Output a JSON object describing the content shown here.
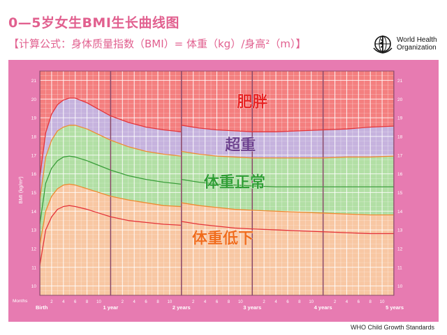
{
  "header": {
    "title": "0—5岁女生BMI生长曲线图",
    "subtitle": "【计算公式：身体质量指数（BMI）= 体重（kg）/身高²（m）】"
  },
  "logo": {
    "text": "World Health\nOrganization"
  },
  "source": "WHO Child Growth Standards",
  "colors": {
    "frame": "#e77bb1",
    "obese_zone": "#f47f7f",
    "overweight_zone": "#c6b3de",
    "normal_zone": "#b2dfa5",
    "underweight_zone": "#f8c7a3",
    "line_red": "#e4343a",
    "line_orange": "#f08a30",
    "line_green": "#3a9e3a"
  },
  "chart_data": {
    "type": "line",
    "ylabel": "BMI (kg/m²)",
    "ylim": [
      9.5,
      21.5
    ],
    "y_ticks": [
      10,
      11,
      12,
      13,
      14,
      15,
      16,
      17,
      18,
      19,
      20,
      21
    ],
    "x_axis_title": "Months",
    "xlim": [
      0,
      60
    ],
    "x_ticks": [
      {
        "month": 0,
        "label": "Birth",
        "major": true
      },
      {
        "month": 2,
        "label": "2"
      },
      {
        "month": 4,
        "label": "4"
      },
      {
        "month": 6,
        "label": "6"
      },
      {
        "month": 8,
        "label": "8"
      },
      {
        "month": 10,
        "label": "10"
      },
      {
        "month": 12,
        "label": "1 year",
        "major": true
      },
      {
        "month": 14,
        "label": "2"
      },
      {
        "month": 16,
        "label": "4"
      },
      {
        "month": 18,
        "label": "6"
      },
      {
        "month": 20,
        "label": "8"
      },
      {
        "month": 22,
        "label": "10"
      },
      {
        "month": 24,
        "label": "2 years",
        "major": true
      },
      {
        "month": 26,
        "label": "2"
      },
      {
        "month": 28,
        "label": "4"
      },
      {
        "month": 30,
        "label": "6"
      },
      {
        "month": 32,
        "label": "8"
      },
      {
        "month": 34,
        "label": "10"
      },
      {
        "month": 36,
        "label": "3 years",
        "major": true
      },
      {
        "month": 38,
        "label": "2"
      },
      {
        "month": 40,
        "label": "4"
      },
      {
        "month": 42,
        "label": "6"
      },
      {
        "month": 44,
        "label": "8"
      },
      {
        "month": 46,
        "label": "10"
      },
      {
        "month": 48,
        "label": "4 years",
        "major": true
      },
      {
        "month": 50,
        "label": "2"
      },
      {
        "month": 52,
        "label": "4"
      },
      {
        "month": 54,
        "label": "6"
      },
      {
        "month": 56,
        "label": "8"
      },
      {
        "month": 58,
        "label": "10"
      },
      {
        "month": 60,
        "label": "5 years",
        "major": true
      }
    ],
    "x": [
      0,
      1,
      2,
      3,
      4,
      5,
      6,
      8,
      10,
      12,
      15,
      18,
      21,
      23.9,
      24,
      27,
      30,
      33,
      36,
      40,
      44,
      48,
      52,
      56,
      60
    ],
    "series": [
      {
        "key": "upper",
        "color": "#e4343a",
        "values": [
          15.8,
          18.2,
          19.2,
          19.7,
          19.95,
          20.05,
          20.05,
          19.8,
          19.45,
          19.1,
          18.75,
          18.5,
          18.35,
          18.25,
          18.6,
          18.45,
          18.35,
          18.3,
          18.25,
          18.25,
          18.3,
          18.35,
          18.4,
          18.5,
          18.55
        ]
      },
      {
        "key": "middle_upper",
        "color": "#f08a30",
        "values": [
          14.6,
          16.9,
          17.8,
          18.3,
          18.5,
          18.6,
          18.6,
          18.4,
          18.1,
          17.8,
          17.45,
          17.2,
          17.05,
          16.95,
          17.2,
          17.05,
          16.95,
          16.9,
          16.85,
          16.85,
          16.85,
          16.85,
          16.9,
          16.9,
          16.95
        ]
      },
      {
        "key": "median",
        "color": "#3a9e3a",
        "values": [
          13.3,
          15.5,
          16.3,
          16.7,
          16.9,
          16.95,
          16.9,
          16.7,
          16.45,
          16.2,
          15.9,
          15.7,
          15.55,
          15.45,
          15.7,
          15.55,
          15.45,
          15.4,
          15.35,
          15.3,
          15.3,
          15.3,
          15.3,
          15.3,
          15.3
        ]
      },
      {
        "key": "middle_lower",
        "color": "#f08a30",
        "values": [
          12.2,
          14.0,
          14.8,
          15.2,
          15.4,
          15.45,
          15.4,
          15.2,
          15.0,
          14.8,
          14.6,
          14.45,
          14.3,
          14.25,
          14.45,
          14.3,
          14.2,
          14.1,
          14.05,
          14.0,
          13.95,
          13.9,
          13.85,
          13.8,
          13.8
        ]
      },
      {
        "key": "lower",
        "color": "#e4343a",
        "values": [
          11.1,
          13.0,
          13.7,
          14.1,
          14.25,
          14.3,
          14.25,
          14.1,
          13.9,
          13.7,
          13.5,
          13.4,
          13.3,
          13.25,
          13.45,
          13.3,
          13.2,
          13.1,
          13.05,
          13.0,
          12.95,
          12.9,
          12.85,
          12.8,
          12.8
        ]
      }
    ],
    "zones": [
      {
        "label": "肥胖",
        "color": "#e82222",
        "label_month": 36,
        "label_bmi": 19.8
      },
      {
        "label": "超重",
        "color": "#6b3e8e",
        "label_month": 34,
        "label_bmi": 17.5
      },
      {
        "label": "体重正常",
        "color": "#2f9e33",
        "label_month": 33,
        "label_bmi": 15.5
      },
      {
        "label": "体重低下",
        "color": "#f06c1c",
        "label_month": 31,
        "label_bmi": 12.5
      }
    ]
  }
}
